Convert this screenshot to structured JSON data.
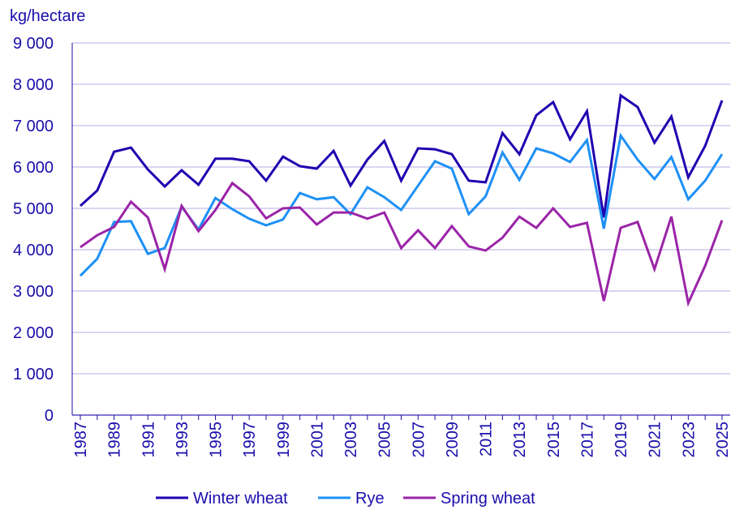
{
  "chart_data": {
    "type": "line",
    "title": "",
    "ylabel": "kg/hectare",
    "xlabel": "",
    "ylim": [
      0,
      9000
    ],
    "yticks": [
      0,
      1000,
      2000,
      3000,
      4000,
      5000,
      6000,
      7000,
      8000,
      9000
    ],
    "ytick_labels": [
      "0",
      "1 000",
      "2 000",
      "3 000",
      "4 000",
      "5 000",
      "6 000",
      "7 000",
      "8 000",
      "9 000"
    ],
    "x": [
      1987,
      1988,
      1989,
      1990,
      1991,
      1992,
      1993,
      1994,
      1995,
      1996,
      1997,
      1998,
      1999,
      2000,
      2001,
      2002,
      2003,
      2004,
      2005,
      2006,
      2007,
      2008,
      2009,
      2010,
      2011,
      2012,
      2013,
      2014,
      2015,
      2016,
      2017,
      2018,
      2019,
      2020,
      2021,
      2022,
      2023,
      2024,
      2025
    ],
    "xtick_labels": [
      "1987",
      "1989",
      "1991",
      "1993",
      "1995",
      "1997",
      "1999",
      "2001",
      "2003",
      "2005",
      "2007",
      "2009",
      "2011",
      "2013",
      "2015",
      "2017",
      "2019",
      "2021",
      "2023",
      "2025"
    ],
    "grid": "horizontal",
    "legend": "bottom",
    "series": [
      {
        "name": "Winter wheat",
        "color": "#2000b0",
        "values": [
          5060,
          5430,
          6370,
          6470,
          5940,
          5530,
          5920,
          5570,
          6200,
          6200,
          6140,
          5670,
          6250,
          6020,
          5960,
          6390,
          5550,
          6180,
          6630,
          5670,
          6450,
          6430,
          6310,
          5670,
          5630,
          6820,
          6310,
          7250,
          7570,
          6670,
          7350,
          4780,
          7730,
          7450,
          6590,
          7220,
          5750,
          6510,
          7610
        ]
      },
      {
        "name": "Rye",
        "color": "#1e90f5",
        "values": [
          3370,
          3780,
          4670,
          4690,
          3900,
          4040,
          5040,
          4490,
          5250,
          4980,
          4750,
          4590,
          4730,
          5370,
          5220,
          5270,
          4860,
          5510,
          5270,
          4960,
          5550,
          6140,
          5960,
          4860,
          5290,
          6350,
          5690,
          6450,
          6330,
          6120,
          6650,
          4510,
          6760,
          6180,
          5710,
          6240,
          5220,
          5670,
          6310
        ]
      },
      {
        "name": "Spring wheat",
        "color": "#9b24a8",
        "values": [
          4060,
          4350,
          4550,
          5160,
          4780,
          3530,
          5060,
          4450,
          4960,
          5610,
          5290,
          4760,
          5000,
          5020,
          4610,
          4900,
          4900,
          4750,
          4900,
          4040,
          4470,
          4040,
          4570,
          4080,
          3980,
          4290,
          4800,
          4530,
          5000,
          4550,
          4650,
          2760,
          4530,
          4670,
          3530,
          4800,
          2710,
          3610,
          4710
        ]
      }
    ]
  }
}
